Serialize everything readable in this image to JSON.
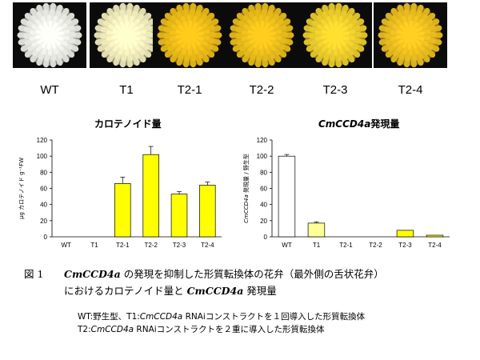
{
  "photos": {
    "labels": [
      "WT",
      "T1",
      "T2-1",
      "T2-2",
      "T2-3",
      "T2-4"
    ],
    "flower_colors": [
      "#f4f4ee",
      "#fbf6c4",
      "#f4c21a",
      "#f2c31c",
      "#f5d52e",
      "#f4c521"
    ]
  },
  "chart_data": [
    {
      "type": "bar",
      "title": "カロテノイド量",
      "ylabel": "μg カロテノイド g⁻¹FW",
      "categories": [
        "WT",
        "T1",
        "T2-1",
        "T2-2",
        "T2-3",
        "T2-4"
      ],
      "values": [
        0,
        0,
        66,
        102,
        53,
        64
      ],
      "errors": [
        0,
        0,
        8,
        10,
        3,
        4
      ],
      "ylim": [
        0,
        120
      ],
      "yticks": [
        0,
        20,
        40,
        60,
        80,
        100,
        120
      ],
      "bar_colors": [
        "#ffffff",
        "#ffff99",
        "#ffff00",
        "#ffff00",
        "#ffff00",
        "#ffff00"
      ],
      "grid": false,
      "legend": "none"
    },
    {
      "type": "bar",
      "title_italic": "CmCCD4a",
      "title": "発現量",
      "ylabel_italic": "CmCCD4a",
      "ylabel": " 発現量 / 野生型",
      "categories": [
        "WT",
        "T1",
        "T2-1",
        "T2-2",
        "T2-3",
        "T2-4"
      ],
      "values": [
        100,
        17,
        0,
        0,
        8,
        2
      ],
      "errors": [
        2,
        1.5,
        0,
        0,
        0,
        0
      ],
      "ylim": [
        0,
        120
      ],
      "yticks": [
        0,
        20,
        40,
        60,
        80,
        100,
        120
      ],
      "bar_colors": [
        "#ffffff",
        "#ffff99",
        "#ffff00",
        "#ffff00",
        "#ffff00",
        "#ffff00"
      ],
      "grid": false,
      "legend": "none"
    }
  ],
  "caption": {
    "number": "図 1",
    "gene": "CmCCD4a",
    "line1_rest": " の発現を抑制した形質転換体の花弁（最外側の舌状花弁）",
    "line2_a": "におけるカロテノイド量と ",
    "line2_gene": "CmCCD4a",
    "line2_b": " 発現量"
  },
  "notes": {
    "line1_a": "WT:野生型、T1:",
    "line1_gene": "CmCCD4a",
    "line1_b": " RNAiコンストラクトを１回導入した形質転換体",
    "line2_a": "T2:",
    "line2_gene": "CmCCD4a",
    "line2_b": " RNAiコンストラクトを２重に導入した形質転換体"
  }
}
